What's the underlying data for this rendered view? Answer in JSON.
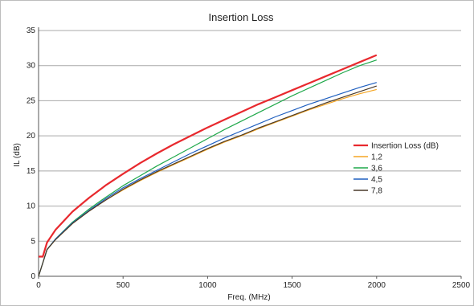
{
  "chart_data": {
    "type": "line",
    "title": "Insertion Loss",
    "xlabel": "Freq. (MHz)",
    "ylabel": "IL (dB)",
    "xlim": [
      0,
      2500
    ],
    "ylim": [
      0,
      35
    ],
    "xticks": [
      0,
      500,
      1000,
      1500,
      2000,
      2500
    ],
    "yticks": [
      0,
      5,
      10,
      15,
      20,
      25,
      30,
      35
    ],
    "grid": "horizontal",
    "legend_position": "right",
    "series": [
      {
        "name": "Insertion Loss (dB)",
        "color": "#e8292e",
        "x": [
          0,
          25,
          50,
          100,
          200,
          300,
          400,
          500,
          600,
          700,
          800,
          900,
          1000,
          1100,
          1200,
          1300,
          1400,
          1500,
          1600,
          1700,
          1800,
          1900,
          2000
        ],
        "y": [
          2.8,
          2.8,
          4.8,
          6.6,
          9.2,
          11.2,
          13.0,
          14.6,
          16.1,
          17.5,
          18.8,
          20.0,
          21.2,
          22.3,
          23.4,
          24.5,
          25.5,
          26.5,
          27.5,
          28.5,
          29.5,
          30.5,
          31.5
        ]
      },
      {
        "name": "1,2",
        "color": "#f5a623",
        "x": [
          0,
          50,
          100,
          200,
          300,
          400,
          500,
          600,
          700,
          800,
          900,
          1000,
          1100,
          1200,
          1300,
          1400,
          1500,
          1600,
          1700,
          1800,
          1900,
          2000
        ],
        "y": [
          0,
          3.8,
          5.2,
          7.5,
          9.3,
          10.9,
          12.3,
          13.6,
          14.8,
          15.9,
          17.0,
          18.1,
          19.1,
          20.0,
          21.0,
          21.9,
          22.8,
          23.7,
          24.5,
          25.3,
          26.0,
          26.6
        ]
      },
      {
        "name": "3,6",
        "color": "#1fa84a",
        "x": [
          0,
          50,
          100,
          200,
          300,
          400,
          500,
          600,
          700,
          800,
          900,
          1000,
          1100,
          1200,
          1300,
          1400,
          1500,
          1600,
          1700,
          1800,
          1900,
          2000
        ],
        "y": [
          0,
          3.8,
          5.3,
          7.7,
          9.6,
          11.3,
          12.9,
          14.3,
          15.7,
          17.0,
          18.3,
          19.6,
          20.9,
          22.1,
          23.3,
          24.5,
          25.7,
          26.8,
          27.9,
          29.0,
          30.0,
          30.8
        ]
      },
      {
        "name": "4,5",
        "color": "#1f5fbf",
        "x": [
          0,
          50,
          100,
          200,
          300,
          400,
          500,
          600,
          700,
          800,
          900,
          1000,
          1100,
          1200,
          1300,
          1400,
          1500,
          1600,
          1700,
          1800,
          1900,
          2000
        ],
        "y": [
          0,
          3.8,
          5.3,
          7.6,
          9.4,
          11.1,
          12.6,
          13.9,
          15.1,
          16.3,
          17.5,
          18.6,
          19.7,
          20.7,
          21.7,
          22.7,
          23.6,
          24.5,
          25.3,
          26.1,
          26.9,
          27.6
        ]
      },
      {
        "name": "7,8",
        "color": "#4a3a2a",
        "x": [
          0,
          50,
          100,
          200,
          300,
          400,
          500,
          600,
          700,
          800,
          900,
          1000,
          1100,
          1200,
          1300,
          1400,
          1500,
          1600,
          1700,
          1800,
          1900,
          2000
        ],
        "y": [
          0,
          3.8,
          5.2,
          7.5,
          9.3,
          10.9,
          12.4,
          13.7,
          14.9,
          16.0,
          17.1,
          18.2,
          19.2,
          20.1,
          21.1,
          22.0,
          22.9,
          23.8,
          24.7,
          25.5,
          26.3,
          27.1
        ]
      }
    ]
  }
}
